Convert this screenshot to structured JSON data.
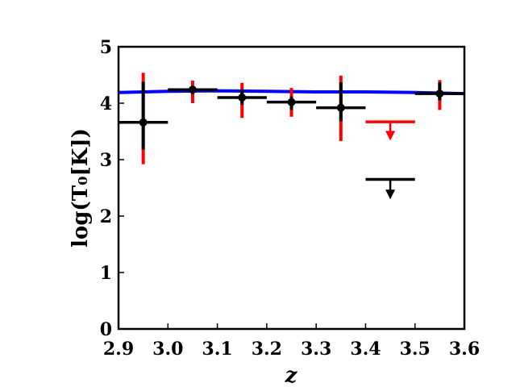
{
  "chart_data": {
    "type": "scatter",
    "xlabel": "z",
    "ylabel": "log(T₀[K])",
    "xlim": [
      2.9,
      3.6
    ],
    "ylim": [
      0,
      5
    ],
    "xticks": [
      "2.9",
      "3.0",
      "3.1",
      "3.2",
      "3.3",
      "3.4",
      "3.5",
      "3.6"
    ],
    "yticks": [
      "0",
      "1",
      "2",
      "3",
      "4",
      "5"
    ],
    "grid": false,
    "legend": "none",
    "colors": {
      "model": "#0000ff",
      "systematic": "#ff0000",
      "statistical": "#000000"
    },
    "model_line": {
      "x": [
        2.9,
        3.0,
        3.1,
        3.2,
        3.3,
        3.4,
        3.5,
        3.6
      ],
      "y": [
        4.19,
        4.21,
        4.22,
        4.21,
        4.2,
        4.2,
        4.19,
        4.17
      ]
    },
    "points": [
      {
        "x": 2.95,
        "y": 3.66,
        "xerr": 0.05,
        "stat_err": [
          3.18,
          4.38
        ],
        "sys_err": [
          2.92,
          4.54
        ]
      },
      {
        "x": 3.05,
        "y": 4.24,
        "xerr": 0.05,
        "stat_err": [
          4.16,
          4.31
        ],
        "sys_err": [
          4.0,
          4.4
        ]
      },
      {
        "x": 3.15,
        "y": 4.1,
        "xerr": 0.05,
        "stat_err": [
          3.97,
          4.25
        ],
        "sys_err": [
          3.74,
          4.36
        ]
      },
      {
        "x": 3.25,
        "y": 4.02,
        "xerr": 0.05,
        "stat_err": [
          3.88,
          4.12
        ],
        "sys_err": [
          3.76,
          4.27
        ]
      },
      {
        "x": 3.35,
        "y": 3.92,
        "xerr": 0.05,
        "stat_err": [
          3.68,
          4.37
        ],
        "sys_err": [
          3.33,
          4.49
        ]
      },
      {
        "x": 3.55,
        "y": 4.17,
        "xerr": 0.05,
        "stat_err": [
          4.05,
          4.37
        ],
        "sys_err": [
          3.88,
          4.41
        ]
      }
    ],
    "upper_limits": [
      {
        "x": 3.45,
        "y": 3.67,
        "xerr": 0.05,
        "color": "#ff0000",
        "arrow_to": 3.38
      },
      {
        "x": 3.45,
        "y": 2.65,
        "xerr": 0.05,
        "color": "#000000",
        "arrow_to": 2.34
      }
    ]
  }
}
